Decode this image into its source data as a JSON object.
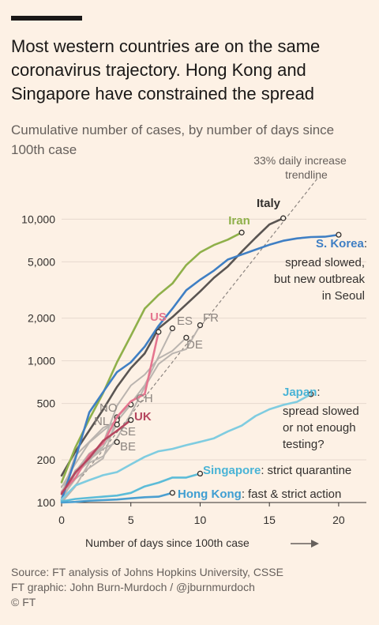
{
  "title": "Most western countries are on the same coronavirus trajectory. Hong Kong and Singapore have constrained the spread",
  "subtitle": "Cumulative number of cases, by number of days since 100th case",
  "source": [
    "Source: FT analysis of Johns Hopkins University, CSSE",
    "FT graphic: John Burn-Murdoch / @jburnmurdoch",
    "© FT"
  ],
  "chart_data": {
    "type": "line",
    "title": "Most western countries are on the same coronavirus trajectory. Hong Kong and Singapore have constrained the spread",
    "subtitle": "Cumulative number of cases, by number of days since 100th case",
    "xlabel": "Number of days since 100th case",
    "ylabel": "",
    "xlim": [
      0,
      22
    ],
    "ylim": [
      100,
      17000
    ],
    "yscale": "log",
    "xticks": [
      0,
      5,
      10,
      15,
      20
    ],
    "xtick_labels": [
      "0",
      "5",
      "10",
      "15",
      "20"
    ],
    "yticks": [
      100,
      200,
      500,
      1000,
      2000,
      5000,
      10000
    ],
    "ytick_labels": [
      "100",
      "200",
      "500",
      "1,000",
      "2,000",
      "5,000",
      "10,000"
    ],
    "grid": true,
    "trendline": {
      "label": "33% daily increase trendline",
      "start": 100,
      "rate": 1.33,
      "x_range": [
        0,
        18.5
      ]
    },
    "series": [
      {
        "name": "Italy",
        "color": "#5a5552",
        "x": [
          0,
          1,
          2,
          3,
          4,
          5,
          6,
          7,
          8,
          9,
          10,
          11,
          12,
          13,
          14,
          15,
          16
        ],
        "y": [
          155,
          229,
          322,
          453,
          655,
          888,
          1128,
          1694,
          2036,
          2502,
          3089,
          3858,
          4636,
          5883,
          7375,
          9172,
          10149
        ],
        "label": "Italy"
      },
      {
        "name": "Iran",
        "color": "#8fb04a",
        "x": [
          0,
          1,
          2,
          3,
          4,
          5,
          6,
          7,
          8,
          9,
          10,
          11,
          12,
          13
        ],
        "y": [
          139,
          245,
          388,
          593,
          978,
          1501,
          2336,
          2922,
          3513,
          4747,
          5823,
          6566,
          7161,
          8042
        ],
        "label": "Iran"
      },
      {
        "name": "S. Korea",
        "color": "#3f7fc4",
        "x": [
          0,
          1,
          2,
          3,
          4,
          5,
          6,
          7,
          8,
          9,
          10,
          11,
          12,
          13,
          14,
          15,
          16,
          17,
          18,
          19,
          20
        ],
        "y": [
          104,
          204,
          433,
          602,
          833,
          977,
          1261,
          1766,
          2337,
          3150,
          3736,
          4335,
          5186,
          5621,
          6088,
          6593,
          7041,
          7314,
          7478,
          7513,
          7755
        ],
        "label": "S. Korea",
        "annotation": [
          "spread slowed,",
          "but new outbreak",
          "in Seoul"
        ]
      },
      {
        "name": "Japan",
        "color": "#7fcce0",
        "x": [
          0,
          1,
          2,
          3,
          4,
          5,
          6,
          7,
          8,
          9,
          10,
          11,
          12,
          13,
          14,
          15,
          16,
          17,
          18
        ],
        "y": [
          105,
          132,
          144,
          156,
          164,
          186,
          210,
          230,
          239,
          254,
          268,
          284,
          317,
          349,
          408,
          455,
          488,
          514,
          581
        ],
        "label": "Japan",
        "annotation": [
          "spread slowed",
          "or not enough",
          "testing?"
        ]
      },
      {
        "name": "Singapore",
        "color": "#5cbcd8",
        "x": [
          0,
          1,
          2,
          3,
          4,
          5,
          6,
          7,
          8,
          9,
          10
        ],
        "y": [
          102,
          106,
          108,
          110,
          112,
          117,
          130,
          138,
          150,
          150,
          160
        ],
        "label": "Singapore",
        "annotation": [
          "strict quarantine"
        ]
      },
      {
        "name": "Hong Kong",
        "color": "#4b9fd0",
        "x": [
          0,
          1,
          2,
          3,
          4,
          5,
          6,
          7,
          8
        ],
        "y": [
          100,
          101,
          103,
          104,
          105,
          107,
          109,
          110,
          117
        ],
        "label": "Hong Kong",
        "annotation": [
          "fast & strict action"
        ]
      },
      {
        "name": "US",
        "color": "#e5758f",
        "x": [
          0,
          1,
          2,
          3,
          4,
          5,
          6,
          7
        ],
        "y": [
          118,
          149,
          217,
          262,
          402,
          518,
          583,
          1600
        ],
        "label": "US"
      },
      {
        "name": "ES",
        "color": "#bab4af",
        "x": [
          0,
          1,
          2,
          3,
          4,
          5,
          6,
          7,
          8
        ],
        "y": [
          120,
          165,
          222,
          259,
          400,
          500,
          673,
          1073,
          1695
        ],
        "label": "ES"
      },
      {
        "name": "FR",
        "color": "#bab4af",
        "x": [
          0,
          1,
          2,
          3,
          4,
          5,
          6,
          7,
          8,
          9,
          10
        ],
        "y": [
          100,
          130,
          191,
          212,
          285,
          423,
          653,
          949,
          1126,
          1209,
          1784
        ],
        "label": "FR"
      },
      {
        "name": "DE",
        "color": "#bab4af",
        "x": [
          0,
          1,
          2,
          3,
          4,
          5,
          6,
          7,
          8,
          9
        ],
        "y": [
          130,
          159,
          196,
          262,
          482,
          670,
          799,
          1040,
          1176,
          1457
        ],
        "label": "DE"
      },
      {
        "name": "CH",
        "color": "#bab4af",
        "x": [
          0,
          1,
          2,
          3,
          4,
          5
        ],
        "y": [
          114,
          214,
          268,
          337,
          374,
          491
        ],
        "label": "CH"
      },
      {
        "name": "NO",
        "color": "#bab4af",
        "x": [
          0,
          1,
          2,
          3,
          4
        ],
        "y": [
          108,
          147,
          176,
          205,
          400
        ],
        "label": "NO"
      },
      {
        "name": "NL",
        "color": "#bab4af",
        "x": [
          0,
          1,
          2,
          3,
          4
        ],
        "y": [
          128,
          188,
          265,
          321,
          382
        ],
        "label": "NL"
      },
      {
        "name": "SE",
        "color": "#bab4af",
        "x": [
          0,
          1,
          2,
          3,
          4
        ],
        "y": [
          101,
          161,
          203,
          248,
          355
        ],
        "label": "SE"
      },
      {
        "name": "BE",
        "color": "#bab4af",
        "x": [
          0,
          1,
          2,
          3,
          4
        ],
        "y": [
          109,
          169,
          200,
          239,
          267
        ],
        "label": "BE"
      },
      {
        "name": "UK",
        "color": "#b5465f",
        "x": [
          0,
          1,
          2,
          3,
          4,
          5
        ],
        "y": [
          115,
          163,
          206,
          273,
          321,
          382
        ],
        "label": "UK"
      }
    ]
  }
}
